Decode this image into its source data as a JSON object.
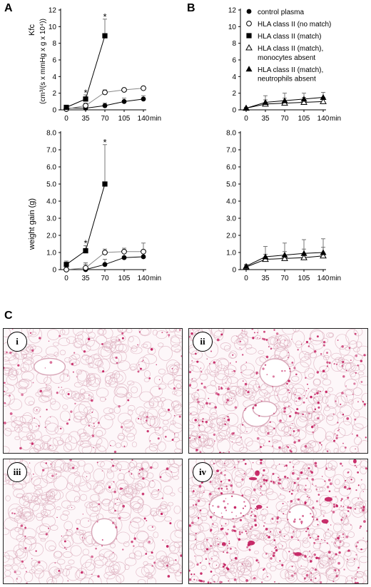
{
  "panels": {
    "a": "A",
    "b": "B",
    "c": "C"
  },
  "legend": [
    {
      "label": "control plasma",
      "marker": "filled-circle"
    },
    {
      "label": "HLA class II (no match)",
      "marker": "open-circle"
    },
    {
      "label": "HLA class II (match)",
      "marker": "filled-square"
    },
    {
      "label": "HLA class II (match),",
      "label2": "monocytes absent",
      "marker": "open-triangle"
    },
    {
      "label": "HLA class II (match),",
      "label2": "neutrophils absent",
      "marker": "filled-triangle"
    }
  ],
  "micrographs": [
    {
      "label": "i",
      "stain_density": "low"
    },
    {
      "label": "ii",
      "stain_density": "medium"
    },
    {
      "label": "iii",
      "stain_density": "low"
    },
    {
      "label": "iv",
      "stain_density": "high"
    }
  ],
  "colors": {
    "stain": "#c2185b",
    "tissue": "#d8a7b8",
    "background": "#fdf7f9"
  },
  "chart_data": [
    {
      "id": "A-top",
      "type": "line",
      "ylabel_main": "Kfc",
      "ylabel_sub": "(cm³/(s x mmHg x g x 10⁴))",
      "xunit": "min",
      "x": [
        0,
        35,
        70,
        105,
        140
      ],
      "xticks": [
        "0",
        "35",
        "70",
        "105",
        "140"
      ],
      "ylim": [
        0,
        12
      ],
      "yticks": [
        "0",
        "2",
        "4",
        "6",
        "8",
        "10",
        "12"
      ],
      "series": [
        {
          "name": "control plasma",
          "marker": "filled-circle",
          "x": [
            0,
            35,
            70,
            105,
            140
          ],
          "values": [
            0.2,
            0.2,
            0.5,
            1.0,
            1.3
          ],
          "err": [
            0.1,
            0.2,
            0.3,
            0.4,
            0.4
          ]
        },
        {
          "name": "HLA class II (no match)",
          "marker": "open-circle",
          "x": [
            0,
            35,
            70,
            105,
            140
          ],
          "values": [
            0.1,
            0.5,
            2.1,
            2.4,
            2.6
          ],
          "err": [
            0.1,
            0.3,
            0.3,
            0.2,
            0.2
          ]
        },
        {
          "name": "HLA class II (match)",
          "marker": "filled-square",
          "x": [
            0,
            35,
            70
          ],
          "values": [
            0.3,
            1.3,
            8.9
          ],
          "err": [
            0.2,
            0.5,
            2.0
          ]
        }
      ],
      "asterisks": [
        {
          "x": 35,
          "y": 2.2
        },
        {
          "x": 70,
          "y": 11.3
        }
      ]
    },
    {
      "id": "B-top",
      "type": "line",
      "xunit": "min",
      "x": [
        0,
        35,
        70,
        105,
        140
      ],
      "xticks": [
        "0",
        "35",
        "70",
        "105",
        "140"
      ],
      "ylim": [
        0,
        12
      ],
      "yticks": [
        "0",
        "2",
        "4",
        "6",
        "8",
        "10",
        "12"
      ],
      "series": [
        {
          "name": "HLA class II (match), monocytes absent",
          "marker": "open-triangle",
          "x": [
            0,
            35,
            70,
            105,
            140
          ],
          "values": [
            0.2,
            0.7,
            0.8,
            0.9,
            1.0
          ],
          "err": [
            0.1,
            0.5,
            0.6,
            0.6,
            0.5
          ]
        },
        {
          "name": "HLA class II (match), neutrophils absent",
          "marker": "filled-triangle",
          "x": [
            0,
            35,
            70,
            105,
            140
          ],
          "values": [
            0.2,
            0.9,
            1.1,
            1.3,
            1.5
          ],
          "err": [
            0.1,
            0.8,
            0.9,
            0.7,
            0.6
          ]
        }
      ]
    },
    {
      "id": "A-bottom",
      "type": "line",
      "ylabel_main": "weight gain (g)",
      "xunit": "min",
      "x": [
        0,
        35,
        70,
        105,
        140
      ],
      "xticks": [
        "0",
        "35",
        "70",
        "105",
        "140"
      ],
      "ylim": [
        0,
        8
      ],
      "yticks": [
        "0",
        "1.0",
        "2.0",
        "3.0",
        "4.0",
        "5.0",
        "6.0",
        "7.0",
        "8.0"
      ],
      "series": [
        {
          "name": "control plasma",
          "marker": "filled-circle",
          "x": [
            0,
            35,
            70,
            105,
            140
          ],
          "values": [
            0.0,
            0.0,
            0.3,
            0.7,
            0.75
          ],
          "err": [
            0.1,
            0.3,
            0.3,
            0.3,
            0.3
          ]
        },
        {
          "name": "HLA class II (no match)",
          "marker": "open-circle",
          "x": [
            0,
            35,
            70,
            105,
            140
          ],
          "values": [
            0.0,
            0.1,
            1.0,
            1.05,
            1.05
          ],
          "err": [
            0.1,
            0.3,
            0.2,
            0.2,
            0.5
          ]
        },
        {
          "name": "HLA class II (match)",
          "marker": "filled-square",
          "x": [
            0,
            35,
            70
          ],
          "values": [
            0.3,
            1.1,
            5.0
          ],
          "err": [
            0.2,
            0.3,
            2.3
          ]
        }
      ],
      "asterisks": [
        {
          "x": 35,
          "y": 1.6
        },
        {
          "x": 70,
          "y": 7.5
        }
      ]
    },
    {
      "id": "B-bottom",
      "type": "line",
      "xunit": "min",
      "x": [
        0,
        35,
        70,
        105,
        140
      ],
      "xticks": [
        "0",
        "35",
        "70",
        "105",
        "140"
      ],
      "ylim": [
        0,
        8
      ],
      "yticks": [
        "0",
        "1.0",
        "2.0",
        "3.0",
        "4.0",
        "5.0",
        "6.0",
        "7.0",
        "8.0"
      ],
      "series": [
        {
          "name": "HLA class II (match), monocytes absent",
          "marker": "open-triangle",
          "x": [
            0,
            35,
            70,
            105,
            140
          ],
          "values": [
            0.15,
            0.6,
            0.65,
            0.7,
            0.8
          ],
          "err": [
            0.1,
            0.3,
            0.4,
            0.5,
            0.5
          ]
        },
        {
          "name": "HLA class II (match), neutrophils absent",
          "marker": "filled-triangle",
          "x": [
            0,
            35,
            70,
            105,
            140
          ],
          "values": [
            0.2,
            0.75,
            0.85,
            0.95,
            1.0
          ],
          "err": [
            0.1,
            0.6,
            0.7,
            0.8,
            0.8
          ]
        }
      ]
    }
  ]
}
